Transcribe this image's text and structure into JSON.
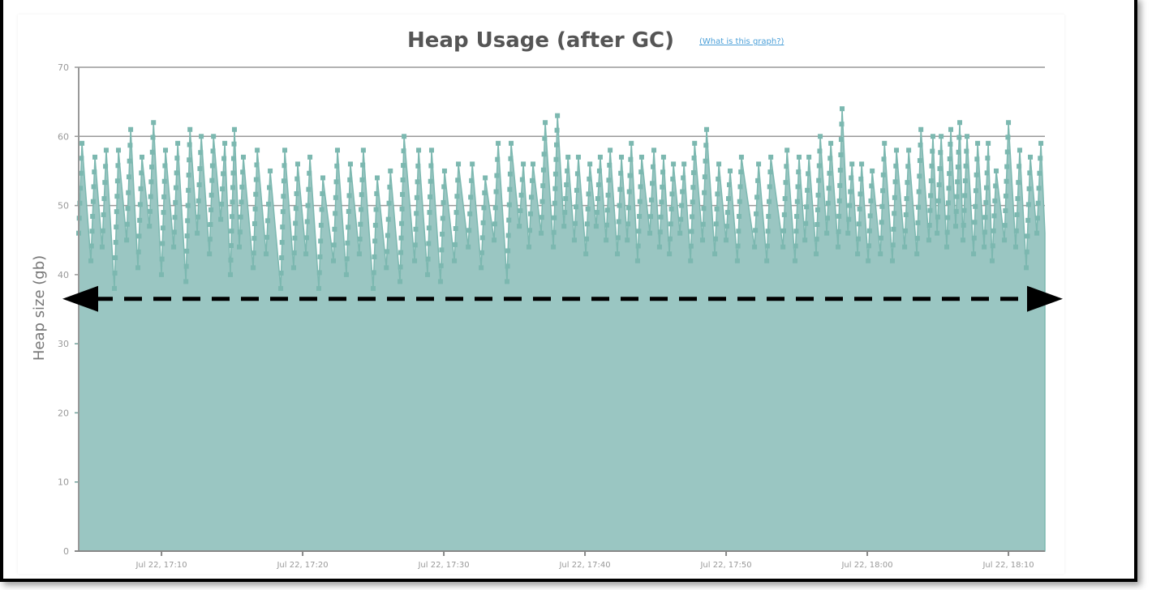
{
  "chart_data": {
    "type": "area",
    "title": "Heap Usage (after GC)",
    "help_link": "(What is this graph?)",
    "ylabel": "Heap size (gb)",
    "xlabel": "",
    "ylim": [
      0,
      70
    ],
    "yticks": [
      0,
      10,
      20,
      30,
      40,
      50,
      60,
      70
    ],
    "xlim": [
      "17:04:08",
      "18:12:35"
    ],
    "xticks": [
      {
        "time": "17:10:00",
        "label": "Jul 22, 17:10"
      },
      {
        "time": "17:20:00",
        "label": "Jul 22, 17:20"
      },
      {
        "time": "17:30:00",
        "label": "Jul 22, 17:30"
      },
      {
        "time": "17:40:00",
        "label": "Jul 22, 17:40"
      },
      {
        "time": "17:50:00",
        "label": "Jul 22, 17:50"
      },
      {
        "time": "18:00:00",
        "label": "Jul 22, 18:00"
      },
      {
        "time": "18:10:00",
        "label": "Jul 22, 18:10"
      }
    ],
    "grid": true,
    "colors": {
      "fill": "#9ac6c2",
      "marker": "#7cb8b0",
      "grid": "#999999",
      "annotation": "#000000"
    },
    "annotation": {
      "type": "dashed-double-arrow",
      "y": 36.5
    },
    "cycles": [
      {
        "t": "17:04:22",
        "min": 46,
        "max": 59
      },
      {
        "t": "17:05:17",
        "min": 42,
        "max": 57
      },
      {
        "t": "17:06:05",
        "min": 44,
        "max": 58
      },
      {
        "t": "17:06:57",
        "min": 38,
        "max": 58
      },
      {
        "t": "17:07:49",
        "min": 45,
        "max": 61
      },
      {
        "t": "17:08:37",
        "min": 41,
        "max": 57
      },
      {
        "t": "17:09:26",
        "min": 47,
        "max": 62
      },
      {
        "t": "17:10:17",
        "min": 40,
        "max": 58
      },
      {
        "t": "17:11:09",
        "min": 44,
        "max": 59
      },
      {
        "t": "17:12:01",
        "min": 39,
        "max": 61
      },
      {
        "t": "17:12:49",
        "min": 46,
        "max": 60
      },
      {
        "t": "17:13:41",
        "min": 43,
        "max": 60
      },
      {
        "t": "17:14:29",
        "min": 48,
        "max": 59
      },
      {
        "t": "17:15:10",
        "min": 40,
        "max": 61
      },
      {
        "t": "17:15:48",
        "min": 44,
        "max": 57
      },
      {
        "t": "17:16:47",
        "min": 41,
        "max": 58
      },
      {
        "t": "17:17:42",
        "min": 43,
        "max": 55
      },
      {
        "t": "17:18:44",
        "min": 38,
        "max": 58
      },
      {
        "t": "17:19:39",
        "min": 41,
        "max": 56
      },
      {
        "t": "17:20:31",
        "min": 43,
        "max": 57
      },
      {
        "t": "17:21:26",
        "min": 38,
        "max": 54
      },
      {
        "t": "17:22:28",
        "min": 42,
        "max": 58
      },
      {
        "t": "17:23:23",
        "min": 40,
        "max": 56
      },
      {
        "t": "17:24:18",
        "min": 43,
        "max": 58
      },
      {
        "t": "17:25:17",
        "min": 38,
        "max": 54
      },
      {
        "t": "17:26:13",
        "min": 41,
        "max": 55
      },
      {
        "t": "17:27:11",
        "min": 39,
        "max": 60
      },
      {
        "t": "17:28:13",
        "min": 42,
        "max": 58
      },
      {
        "t": "17:29:08",
        "min": 40,
        "max": 58
      },
      {
        "t": "17:30:03",
        "min": 39,
        "max": 55
      },
      {
        "t": "17:31:02",
        "min": 42,
        "max": 56
      },
      {
        "t": "17:32:01",
        "min": 44,
        "max": 56
      },
      {
        "t": "17:32:56",
        "min": 41,
        "max": 54
      },
      {
        "t": "17:33:51",
        "min": 45,
        "max": 59
      },
      {
        "t": "17:34:46",
        "min": 39,
        "max": 59
      },
      {
        "t": "17:35:38",
        "min": 47,
        "max": 56
      },
      {
        "t": "17:36:19",
        "min": 44,
        "max": 56
      },
      {
        "t": "17:37:11",
        "min": 46,
        "max": 62
      },
      {
        "t": "17:38:03",
        "min": 44,
        "max": 63
      },
      {
        "t": "17:38:48",
        "min": 47,
        "max": 57
      },
      {
        "t": "17:39:32",
        "min": 45,
        "max": 57
      },
      {
        "t": "17:40:21",
        "min": 43,
        "max": 56
      },
      {
        "t": "17:41:05",
        "min": 47,
        "max": 57
      },
      {
        "t": "17:41:47",
        "min": 45,
        "max": 58
      },
      {
        "t": "17:42:35",
        "min": 43,
        "max": 57
      },
      {
        "t": "17:43:17",
        "min": 45,
        "max": 59
      },
      {
        "t": "17:44:01",
        "min": 42,
        "max": 57
      },
      {
        "t": "17:44:53",
        "min": 46,
        "max": 58
      },
      {
        "t": "17:45:34",
        "min": 44,
        "max": 57
      },
      {
        "t": "17:46:16",
        "min": 43,
        "max": 56
      },
      {
        "t": "17:47:01",
        "min": 46,
        "max": 56
      },
      {
        "t": "17:47:46",
        "min": 42,
        "max": 59
      },
      {
        "t": "17:48:37",
        "min": 45,
        "max": 61
      },
      {
        "t": "17:49:29",
        "min": 43,
        "max": 56
      },
      {
        "t": "17:50:17",
        "min": 45,
        "max": 55
      },
      {
        "t": "17:51:05",
        "min": 42,
        "max": 57
      },
      {
        "t": "17:52:18",
        "min": 44,
        "max": 56
      },
      {
        "t": "17:53:10",
        "min": 42,
        "max": 57
      },
      {
        "t": "17:54:19",
        "min": 44,
        "max": 58
      },
      {
        "t": "17:55:10",
        "min": 42,
        "max": 57
      },
      {
        "t": "17:55:52",
        "min": 45,
        "max": 57
      },
      {
        "t": "17:56:40",
        "min": 43,
        "max": 60
      },
      {
        "t": "17:57:25",
        "min": 46,
        "max": 59
      },
      {
        "t": "17:58:13",
        "min": 44,
        "max": 64
      },
      {
        "t": "17:58:55",
        "min": 46,
        "max": 56
      },
      {
        "t": "17:59:36",
        "min": 43,
        "max": 56
      },
      {
        "t": "18:00:21",
        "min": 42,
        "max": 55
      },
      {
        "t": "18:01:13",
        "min": 43,
        "max": 59
      },
      {
        "t": "18:02:04",
        "min": 42,
        "max": 58
      },
      {
        "t": "18:02:56",
        "min": 44,
        "max": 58
      },
      {
        "t": "18:03:48",
        "min": 43,
        "max": 61
      },
      {
        "t": "18:04:39",
        "min": 45,
        "max": 60
      },
      {
        "t": "18:05:14",
        "min": 46,
        "max": 60
      },
      {
        "t": "18:05:55",
        "min": 44,
        "max": 61
      },
      {
        "t": "18:06:33",
        "min": 47,
        "max": 62
      },
      {
        "t": "18:07:04",
        "min": 45,
        "max": 60
      },
      {
        "t": "18:07:49",
        "min": 43,
        "max": 59
      },
      {
        "t": "18:08:34",
        "min": 44,
        "max": 59
      },
      {
        "t": "18:09:08",
        "min": 42,
        "max": 55
      },
      {
        "t": "18:10:00",
        "min": 45,
        "max": 62
      },
      {
        "t": "18:10:48",
        "min": 44,
        "max": 58
      },
      {
        "t": "18:11:33",
        "min": 41,
        "max": 57
      },
      {
        "t": "18:12:18",
        "min": 46,
        "max": 59
      }
    ]
  }
}
